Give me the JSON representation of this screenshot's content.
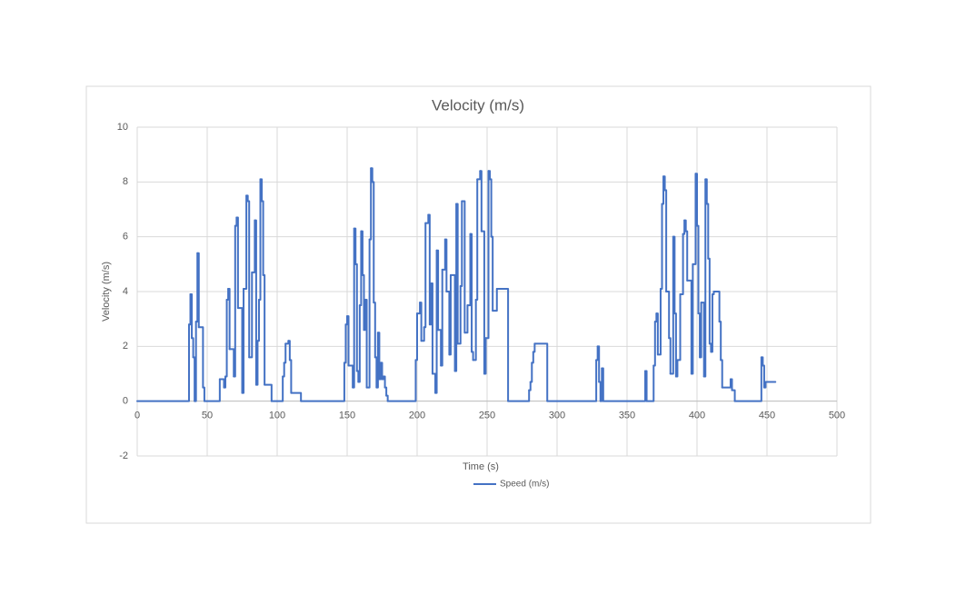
{
  "chart_data": {
    "type": "line",
    "step": true,
    "title": "Velocity (m/s)",
    "x_label": "Time (s)",
    "y_label": "Velocity (m/s)",
    "xlim": [
      0,
      500
    ],
    "xticks": [
      0,
      50,
      100,
      150,
      200,
      250,
      300,
      350,
      400,
      450,
      500
    ],
    "ylim": [
      -2,
      10
    ],
    "yticks": [
      -2,
      0,
      2,
      4,
      6,
      8,
      10
    ],
    "grid": true,
    "legend": "bottom",
    "x": [
      0,
      37,
      38,
      39,
      40,
      41,
      42,
      43,
      44,
      47,
      48,
      59,
      62,
      63,
      64,
      65,
      66,
      69,
      70,
      71,
      72,
      75,
      76,
      78,
      79,
      80,
      82,
      84,
      85,
      86,
      87,
      88,
      89,
      90,
      91,
      96,
      104,
      105,
      106,
      108,
      109,
      110,
      117,
      148,
      149,
      150,
      151,
      154,
      155,
      156,
      157,
      158,
      159,
      160,
      161,
      162,
      163,
      164,
      166,
      167,
      168,
      169,
      170,
      171,
      172,
      173,
      174,
      175,
      176,
      177,
      178,
      179,
      199,
      200,
      202,
      203,
      205,
      206,
      208,
      209,
      210,
      211,
      213,
      214,
      215,
      217,
      218,
      220,
      221,
      223,
      224,
      227,
      228,
      229,
      231,
      232,
      234,
      236,
      238,
      239,
      240,
      242,
      243,
      245,
      246,
      248,
      249,
      251,
      252,
      253,
      254,
      257,
      265,
      280,
      281,
      282,
      283,
      284,
      293,
      328,
      329,
      330,
      331,
      332,
      333,
      363,
      364,
      369,
      370,
      371,
      372,
      374,
      375,
      376,
      377,
      378,
      380,
      381,
      383,
      384,
      385,
      386,
      388,
      390,
      391,
      392,
      393,
      396,
      397,
      399,
      400,
      401,
      402,
      403,
      405,
      406,
      407,
      408,
      409,
      410,
      411,
      412,
      416,
      417,
      418,
      424,
      425,
      427,
      446,
      447,
      448,
      449,
      456
    ],
    "series": [
      {
        "name": "Speed (m/s)",
        "color": "#4472c4",
        "values": [
          0,
          2.8,
          3.9,
          2.3,
          1.6,
          0,
          2.9,
          5.4,
          2.7,
          0.5,
          0,
          0.8,
          0.5,
          0.9,
          3.7,
          4.1,
          1.9,
          0.9,
          6.4,
          6.7,
          3.4,
          0.3,
          4.1,
          7.5,
          7.3,
          1.6,
          4.7,
          6.6,
          0.6,
          2.2,
          3.7,
          8.1,
          7.3,
          4.6,
          0.6,
          0,
          0.9,
          1.4,
          2.1,
          2.2,
          1.5,
          0.3,
          0,
          1.4,
          2.8,
          3.1,
          1.3,
          0.5,
          6.3,
          5.0,
          1.1,
          0.7,
          3.5,
          6.2,
          4.6,
          2.6,
          3.7,
          0.5,
          5.9,
          8.5,
          8.0,
          3.6,
          1.6,
          0.5,
          2.5,
          0.8,
          1.4,
          0.8,
          0.9,
          0.5,
          0.2,
          0,
          1.5,
          3.2,
          3.6,
          2.2,
          2.7,
          6.5,
          6.8,
          2.8,
          4.3,
          1.0,
          0.3,
          5.5,
          2.6,
          1.3,
          4.8,
          5.9,
          4.0,
          1.7,
          4.6,
          1.1,
          7.2,
          2.1,
          4.2,
          7.3,
          2.5,
          3.5,
          6.1,
          1.8,
          1.5,
          3.7,
          8.1,
          8.4,
          6.2,
          1.0,
          2.3,
          8.4,
          8.1,
          6.0,
          3.3,
          4.1,
          0,
          0.4,
          0.7,
          1.4,
          1.8,
          2.1,
          0,
          1.5,
          2.0,
          0.7,
          0,
          1.2,
          0,
          1.1,
          0,
          1.3,
          2.9,
          3.2,
          1.7,
          4.1,
          7.2,
          8.2,
          7.7,
          4.0,
          2.3,
          1.0,
          6.0,
          3.2,
          0.9,
          1.5,
          3.9,
          6.1,
          6.6,
          6.2,
          4.4,
          1.0,
          5.0,
          8.3,
          6.4,
          3.2,
          1.6,
          3.6,
          0.9,
          8.1,
          7.2,
          5.2,
          2.1,
          1.8,
          3.9,
          4.0,
          2.9,
          1.5,
          0.5,
          0.8,
          0.4,
          0,
          1.6,
          1.3,
          0.5,
          0.7,
          0.7
        ]
      }
    ]
  }
}
